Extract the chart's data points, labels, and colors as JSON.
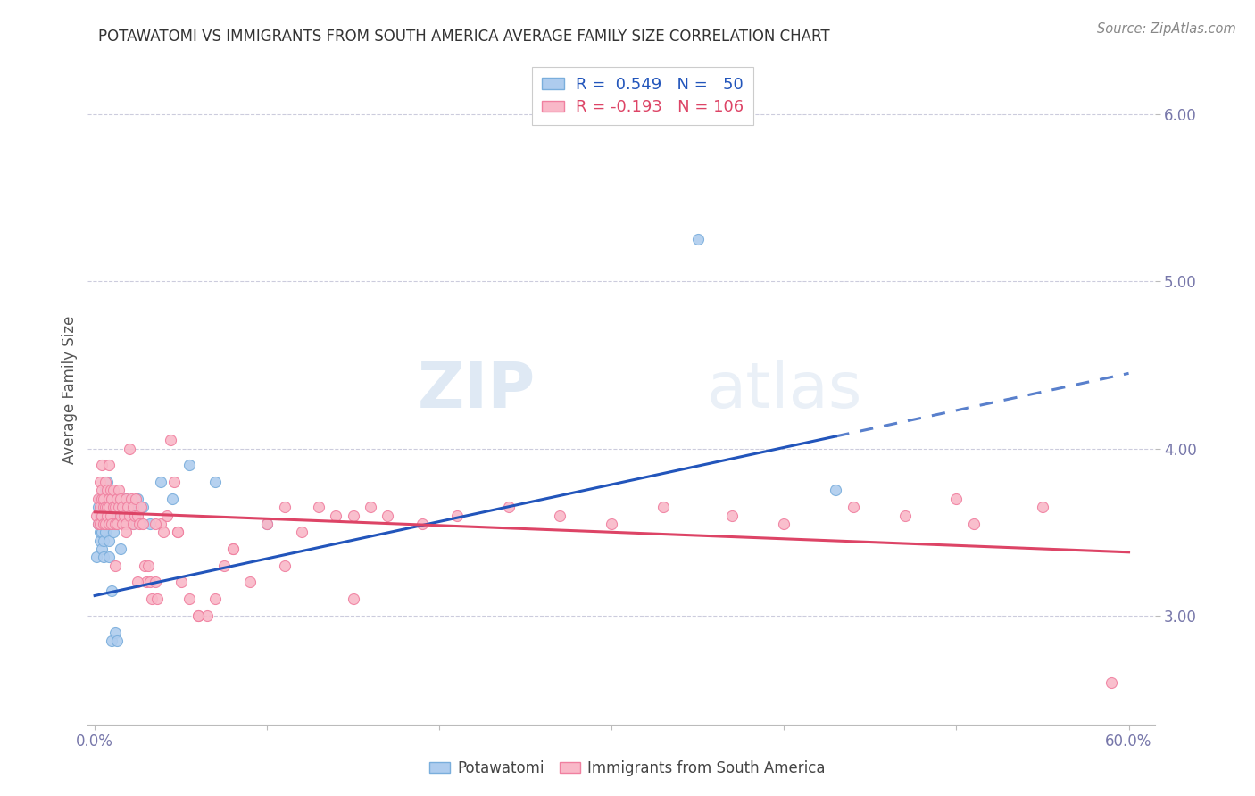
{
  "title": "POTAWATOMI VS IMMIGRANTS FROM SOUTH AMERICA AVERAGE FAMILY SIZE CORRELATION CHART",
  "source": "Source: ZipAtlas.com",
  "ylabel": "Average Family Size",
  "watermark": "ZIPatlas",
  "blue_face_color": "#aeccee",
  "blue_edge_color": "#7aaedc",
  "pink_face_color": "#f9b8c8",
  "pink_edge_color": "#f080a0",
  "blue_line_color": "#2255bb",
  "pink_line_color": "#dd4466",
  "grid_color": "#ccccdd",
  "tick_color": "#7777aa",
  "title_color": "#333333",
  "source_color": "#888888",
  "ylabel_color": "#555555",
  "xlim_min": -0.004,
  "xlim_max": 0.615,
  "ylim_min": 2.35,
  "ylim_max": 6.35,
  "yticks": [
    3.0,
    4.0,
    5.0,
    6.0
  ],
  "xtick_positions": [
    0.0,
    0.1,
    0.2,
    0.3,
    0.4,
    0.5,
    0.6
  ],
  "blue_x": [
    0.001,
    0.002,
    0.002,
    0.003,
    0.003,
    0.003,
    0.003,
    0.004,
    0.004,
    0.004,
    0.004,
    0.005,
    0.005,
    0.005,
    0.005,
    0.006,
    0.006,
    0.006,
    0.006,
    0.007,
    0.007,
    0.007,
    0.008,
    0.008,
    0.008,
    0.009,
    0.009,
    0.01,
    0.01,
    0.011,
    0.011,
    0.012,
    0.013,
    0.014,
    0.015,
    0.016,
    0.017,
    0.018,
    0.02,
    0.022,
    0.025,
    0.028,
    0.032,
    0.038,
    0.045,
    0.055,
    0.07,
    0.1,
    0.35,
    0.43
  ],
  "blue_y": [
    3.35,
    3.55,
    3.65,
    3.45,
    3.6,
    3.7,
    3.5,
    3.55,
    3.65,
    3.5,
    3.4,
    3.7,
    3.55,
    3.45,
    3.35,
    3.75,
    3.6,
    3.5,
    3.65,
    3.8,
    3.55,
    3.65,
    3.45,
    3.35,
    3.7,
    3.55,
    3.6,
    3.15,
    2.85,
    3.6,
    3.5,
    2.9,
    2.85,
    3.65,
    3.4,
    3.6,
    3.65,
    3.7,
    3.65,
    3.55,
    3.7,
    3.65,
    3.55,
    3.8,
    3.7,
    3.9,
    3.8,
    3.55,
    5.25,
    3.75
  ],
  "pink_x": [
    0.001,
    0.002,
    0.002,
    0.003,
    0.003,
    0.003,
    0.004,
    0.004,
    0.004,
    0.005,
    0.005,
    0.005,
    0.006,
    0.006,
    0.006,
    0.007,
    0.007,
    0.007,
    0.008,
    0.008,
    0.008,
    0.009,
    0.009,
    0.01,
    0.01,
    0.011,
    0.011,
    0.012,
    0.012,
    0.013,
    0.013,
    0.014,
    0.014,
    0.015,
    0.015,
    0.016,
    0.016,
    0.017,
    0.018,
    0.018,
    0.019,
    0.02,
    0.02,
    0.021,
    0.022,
    0.022,
    0.023,
    0.024,
    0.025,
    0.026,
    0.027,
    0.028,
    0.029,
    0.03,
    0.031,
    0.032,
    0.033,
    0.035,
    0.036,
    0.038,
    0.04,
    0.042,
    0.044,
    0.046,
    0.048,
    0.05,
    0.055,
    0.06,
    0.065,
    0.07,
    0.075,
    0.08,
    0.09,
    0.1,
    0.11,
    0.12,
    0.13,
    0.14,
    0.15,
    0.16,
    0.17,
    0.19,
    0.21,
    0.24,
    0.27,
    0.3,
    0.33,
    0.37,
    0.4,
    0.44,
    0.47,
    0.51,
    0.55,
    0.004,
    0.008,
    0.012,
    0.018,
    0.025,
    0.035,
    0.048,
    0.06,
    0.08,
    0.11,
    0.15,
    0.5,
    0.59
  ],
  "pink_y": [
    3.6,
    3.7,
    3.55,
    3.65,
    3.8,
    3.55,
    3.7,
    3.6,
    3.75,
    3.65,
    3.55,
    3.7,
    3.65,
    3.8,
    3.55,
    3.65,
    3.75,
    3.6,
    3.55,
    3.7,
    3.65,
    3.75,
    3.6,
    3.7,
    3.55,
    3.65,
    3.75,
    3.55,
    3.65,
    3.7,
    3.55,
    3.65,
    3.75,
    3.6,
    3.7,
    3.55,
    3.65,
    3.6,
    3.7,
    3.55,
    3.65,
    4.0,
    3.6,
    3.7,
    3.55,
    3.65,
    3.6,
    3.7,
    3.6,
    3.55,
    3.65,
    3.55,
    3.3,
    3.2,
    3.3,
    3.2,
    3.1,
    3.2,
    3.1,
    3.55,
    3.5,
    3.6,
    4.05,
    3.8,
    3.5,
    3.2,
    3.1,
    3.0,
    3.0,
    3.1,
    3.3,
    3.4,
    3.2,
    3.55,
    3.65,
    3.5,
    3.65,
    3.6,
    3.6,
    3.65,
    3.6,
    3.55,
    3.6,
    3.65,
    3.6,
    3.55,
    3.65,
    3.6,
    3.55,
    3.65,
    3.6,
    3.55,
    3.65,
    3.9,
    3.9,
    3.3,
    3.5,
    3.2,
    3.55,
    3.5,
    3.0,
    3.4,
    3.3,
    3.1,
    3.7,
    2.6
  ],
  "blue_line_x0": 0.0,
  "blue_line_x_solid_end": 0.43,
  "blue_line_x1": 0.6,
  "blue_line_y0": 3.12,
  "blue_line_y1": 4.45,
  "pink_line_x0": 0.0,
  "pink_line_x1": 0.6,
  "pink_line_y0": 3.62,
  "pink_line_y1": 3.38
}
